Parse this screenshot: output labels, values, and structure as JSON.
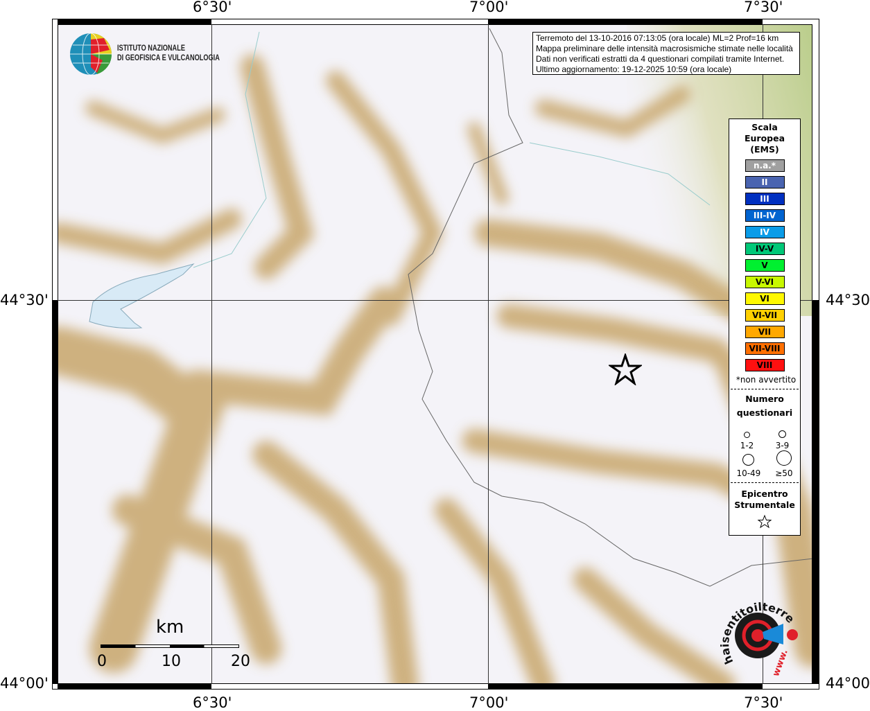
{
  "map": {
    "lon_labels": [
      "6°30'",
      "7°00'",
      "7°30'"
    ],
    "lat_labels": [
      "44°30'",
      "44°00'"
    ],
    "terrain_colors": {
      "low": "#f4f3f8",
      "mid": "#c8a66a",
      "plain": "#b9cd8a",
      "lake": "#d8eaf6"
    }
  },
  "info": {
    "lines": [
      "Terremoto del 13-10-2016 07:13:05 (ora locale) ML=2 Prof=16 km",
      "Mappa preliminare delle intensità macrosismiche stimate nelle località",
      "Dati non verificati estratti da 4 questionari compilati tramite Internet.",
      "Ultimo aggiornamento: 19-12-2025 10:59 (ora locale)"
    ]
  },
  "logo_ingv": {
    "line1": "ISTITUTO NAZIONALE",
    "line2": "DI GEOFISICA E VULCANOLOGIA"
  },
  "logo_hsit": {
    "text": "haisentitoilterremoto.it",
    "url_text": "www."
  },
  "legend": {
    "title": [
      "Scala",
      "Europea",
      "(EMS)"
    ],
    "items": [
      {
        "label": "n.a.*",
        "color": "#a0a0a0",
        "text": "#ffffff"
      },
      {
        "label": "II",
        "color": "#4a64b0",
        "text": "#ffffff"
      },
      {
        "label": "III",
        "color": "#0030c0",
        "text": "#ffffff"
      },
      {
        "label": "III-IV",
        "color": "#0064d0",
        "text": "#ffffff"
      },
      {
        "label": "IV",
        "color": "#0a9ce8",
        "text": "#ffffff"
      },
      {
        "label": "IV-V",
        "color": "#00c878",
        "text": "#000000"
      },
      {
        "label": "V",
        "color": "#00f030",
        "text": "#000000"
      },
      {
        "label": "V-VI",
        "color": "#c8f800",
        "text": "#000000"
      },
      {
        "label": "VI",
        "color": "#fff800",
        "text": "#000000"
      },
      {
        "label": "VI-VII",
        "color": "#ffd000",
        "text": "#000000"
      },
      {
        "label": "VII",
        "color": "#ffa800",
        "text": "#000000"
      },
      {
        "label": "VII-VIII",
        "color": "#ff7000",
        "text": "#000000"
      },
      {
        "label": "VIII",
        "color": "#ff1010",
        "text": "#000000"
      }
    ],
    "note": "*non avvertito",
    "count_title": [
      "Numero",
      "questionari"
    ],
    "counts": [
      "1-2",
      "3-9",
      "10-49",
      "≥50"
    ],
    "epicenter_title": [
      "Epicentro",
      "Strumentale"
    ]
  },
  "scale_bar": {
    "unit": "km",
    "ticks": [
      "0",
      "10",
      "20"
    ]
  }
}
